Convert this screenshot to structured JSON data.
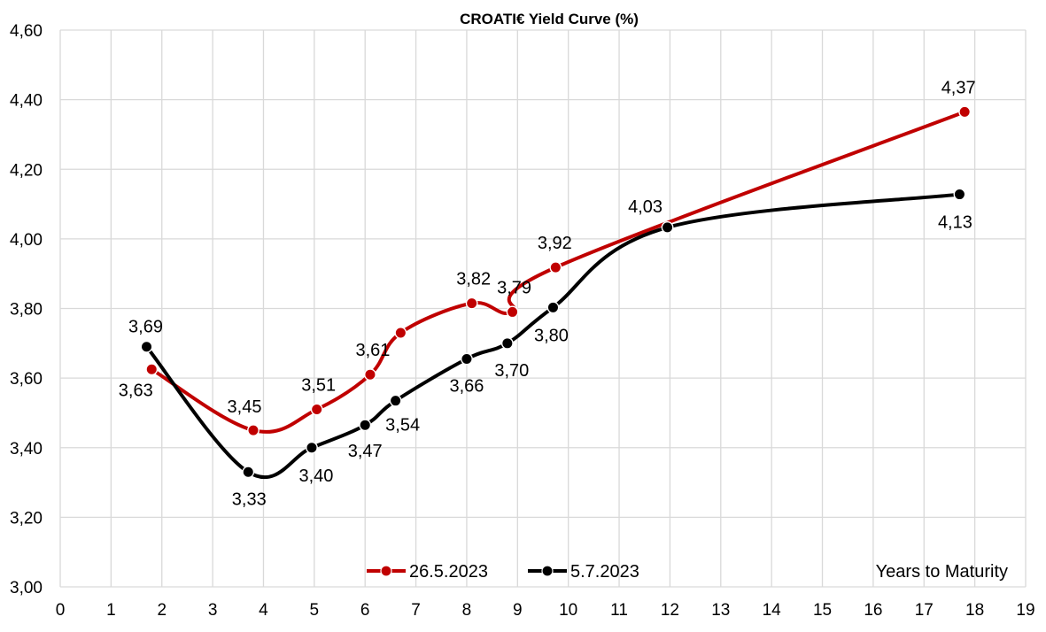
{
  "chart_data": {
    "type": "line",
    "title": "CROATI€ Yield Curve (%)",
    "xlabel": "Years to Maturity",
    "ylabel": "",
    "xlim": [
      0,
      19
    ],
    "ylim": [
      3.0,
      4.6
    ],
    "x_ticks": [
      0,
      1,
      2,
      3,
      4,
      5,
      6,
      7,
      8,
      9,
      10,
      11,
      12,
      13,
      14,
      15,
      16,
      17,
      18,
      19
    ],
    "x_tick_labels": [
      "0",
      "1",
      "2",
      "3",
      "4",
      "5",
      "6",
      "7",
      "8",
      "9",
      "10",
      "11",
      "12",
      "13",
      "14",
      "15",
      "16",
      "17",
      "18",
      "19"
    ],
    "y_ticks": [
      3.0,
      3.2,
      3.4,
      3.6,
      3.8,
      4.0,
      4.2,
      4.4,
      4.6
    ],
    "y_tick_labels": [
      "3,00",
      "3,20",
      "3,40",
      "3,60",
      "3,80",
      "4,00",
      "4,20",
      "4,40",
      "4,60"
    ],
    "grid": true,
    "legend": "bottom-center",
    "series": [
      {
        "name": "26.5.2023",
        "color": "#c00000",
        "points": [
          {
            "x": 1.8,
            "y": 3.625,
            "label": "3,63"
          },
          {
            "x": 3.8,
            "y": 3.45,
            "label": "3,45"
          },
          {
            "x": 5.05,
            "y": 3.51,
            "label": "3,51"
          },
          {
            "x": 6.1,
            "y": 3.61,
            "label": "3,61"
          },
          {
            "x": 6.7,
            "y": 3.73,
            "label": ""
          },
          {
            "x": 8.1,
            "y": 3.815,
            "label": "3,82"
          },
          {
            "x": 8.9,
            "y": 3.79,
            "label": "3,79"
          },
          {
            "x": 9.75,
            "y": 3.918,
            "label": "3,92"
          },
          {
            "x": 17.8,
            "y": 4.365,
            "label": "4,37"
          }
        ]
      },
      {
        "name": "5.7.2023",
        "color": "#000000",
        "points": [
          {
            "x": 1.7,
            "y": 3.69,
            "label": "3,69"
          },
          {
            "x": 3.7,
            "y": 3.33,
            "label": "3,33"
          },
          {
            "x": 4.95,
            "y": 3.4,
            "label": "3,40"
          },
          {
            "x": 6.0,
            "y": 3.465,
            "label": "3,47"
          },
          {
            "x": 6.6,
            "y": 3.535,
            "label": "3,54"
          },
          {
            "x": 8.0,
            "y": 3.655,
            "label": "3,66"
          },
          {
            "x": 8.8,
            "y": 3.7,
            "label": "3,70"
          },
          {
            "x": 9.7,
            "y": 3.803,
            "label": "3,80"
          },
          {
            "x": 11.95,
            "y": 4.033,
            "label": "4,03"
          },
          {
            "x": 17.7,
            "y": 4.128,
            "label": "4,13"
          }
        ]
      }
    ]
  }
}
